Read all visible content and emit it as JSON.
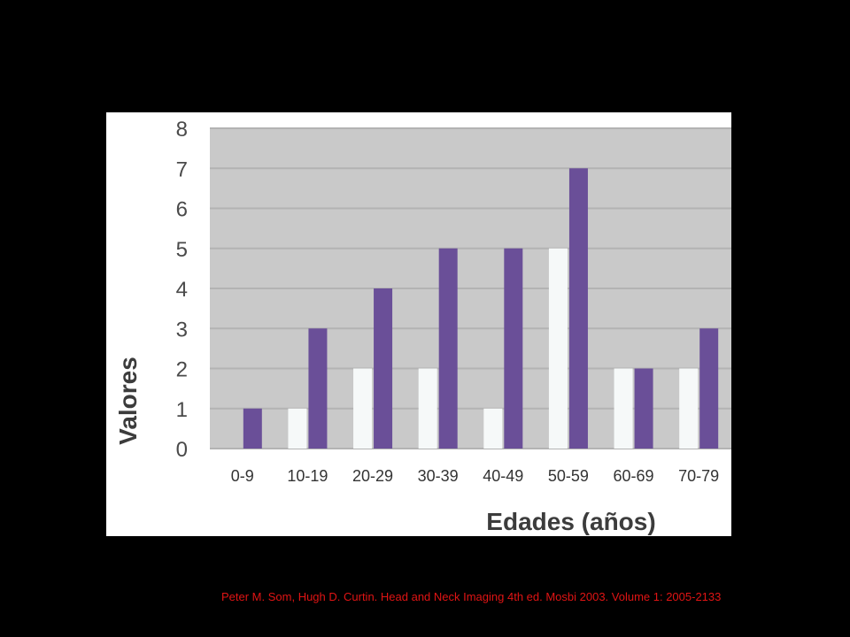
{
  "chart_data": {
    "type": "bar",
    "categories": [
      "0-9",
      "10-19",
      "20-29",
      "30-39",
      "40-49",
      "50-59",
      "60-69",
      "70-79"
    ],
    "series": [
      {
        "values": [
          0,
          1,
          2,
          2,
          1,
          5,
          2,
          2
        ]
      },
      {
        "values": [
          1,
          3,
          4,
          5,
          5,
          7,
          2,
          3
        ]
      }
    ],
    "ylim": [
      0,
      8
    ],
    "yticks": [
      "0",
      "1",
      "2",
      "3",
      "4",
      "5",
      "6",
      "7",
      "8"
    ],
    "xlabel": "Edades (años)",
    "ylabel": "Valores",
    "grid": true,
    "colors": {
      "plot_bg": "#c9c9c9",
      "gridline": "#b3b3b3",
      "series_light": "#f6f9f9",
      "series_dark": "#6a4f98",
      "page_bg": "#000000",
      "citation": "#e01414"
    }
  },
  "citation": "Peter M. Som, Hugh D. Curtin. Head and Neck Imaging 4th ed. Mosbi 2003. Volume 1: 2005-2133"
}
